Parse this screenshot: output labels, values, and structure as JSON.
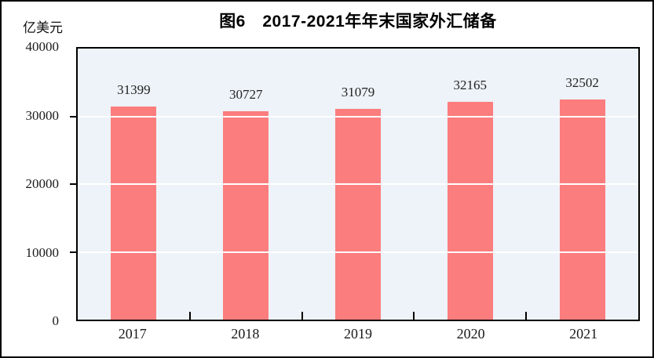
{
  "header": {
    "title": "图6　2017-2021年年末国家外汇储备",
    "y_unit": "亿美元"
  },
  "chart_data": {
    "type": "bar",
    "title": "图6　2017-2021年年末国家外汇储备",
    "ylabel": "亿美元",
    "xlabel": "",
    "categories": [
      "2017",
      "2018",
      "2019",
      "2020",
      "2021"
    ],
    "values": [
      31399,
      30727,
      31079,
      32165,
      32502
    ],
    "data_labels": [
      31399,
      30727,
      31079,
      32165,
      32502
    ],
    "ylim": [
      0,
      40000
    ],
    "yticks": [
      0,
      10000,
      20000,
      30000,
      40000
    ],
    "legend": "none",
    "grid": "horizontal",
    "colors": {
      "bar": "#FC7D7D",
      "plot_background": "#EDF3F8",
      "gridline": "#FFFFFF",
      "axis": "#000000",
      "text": "#1a1a1a"
    }
  }
}
